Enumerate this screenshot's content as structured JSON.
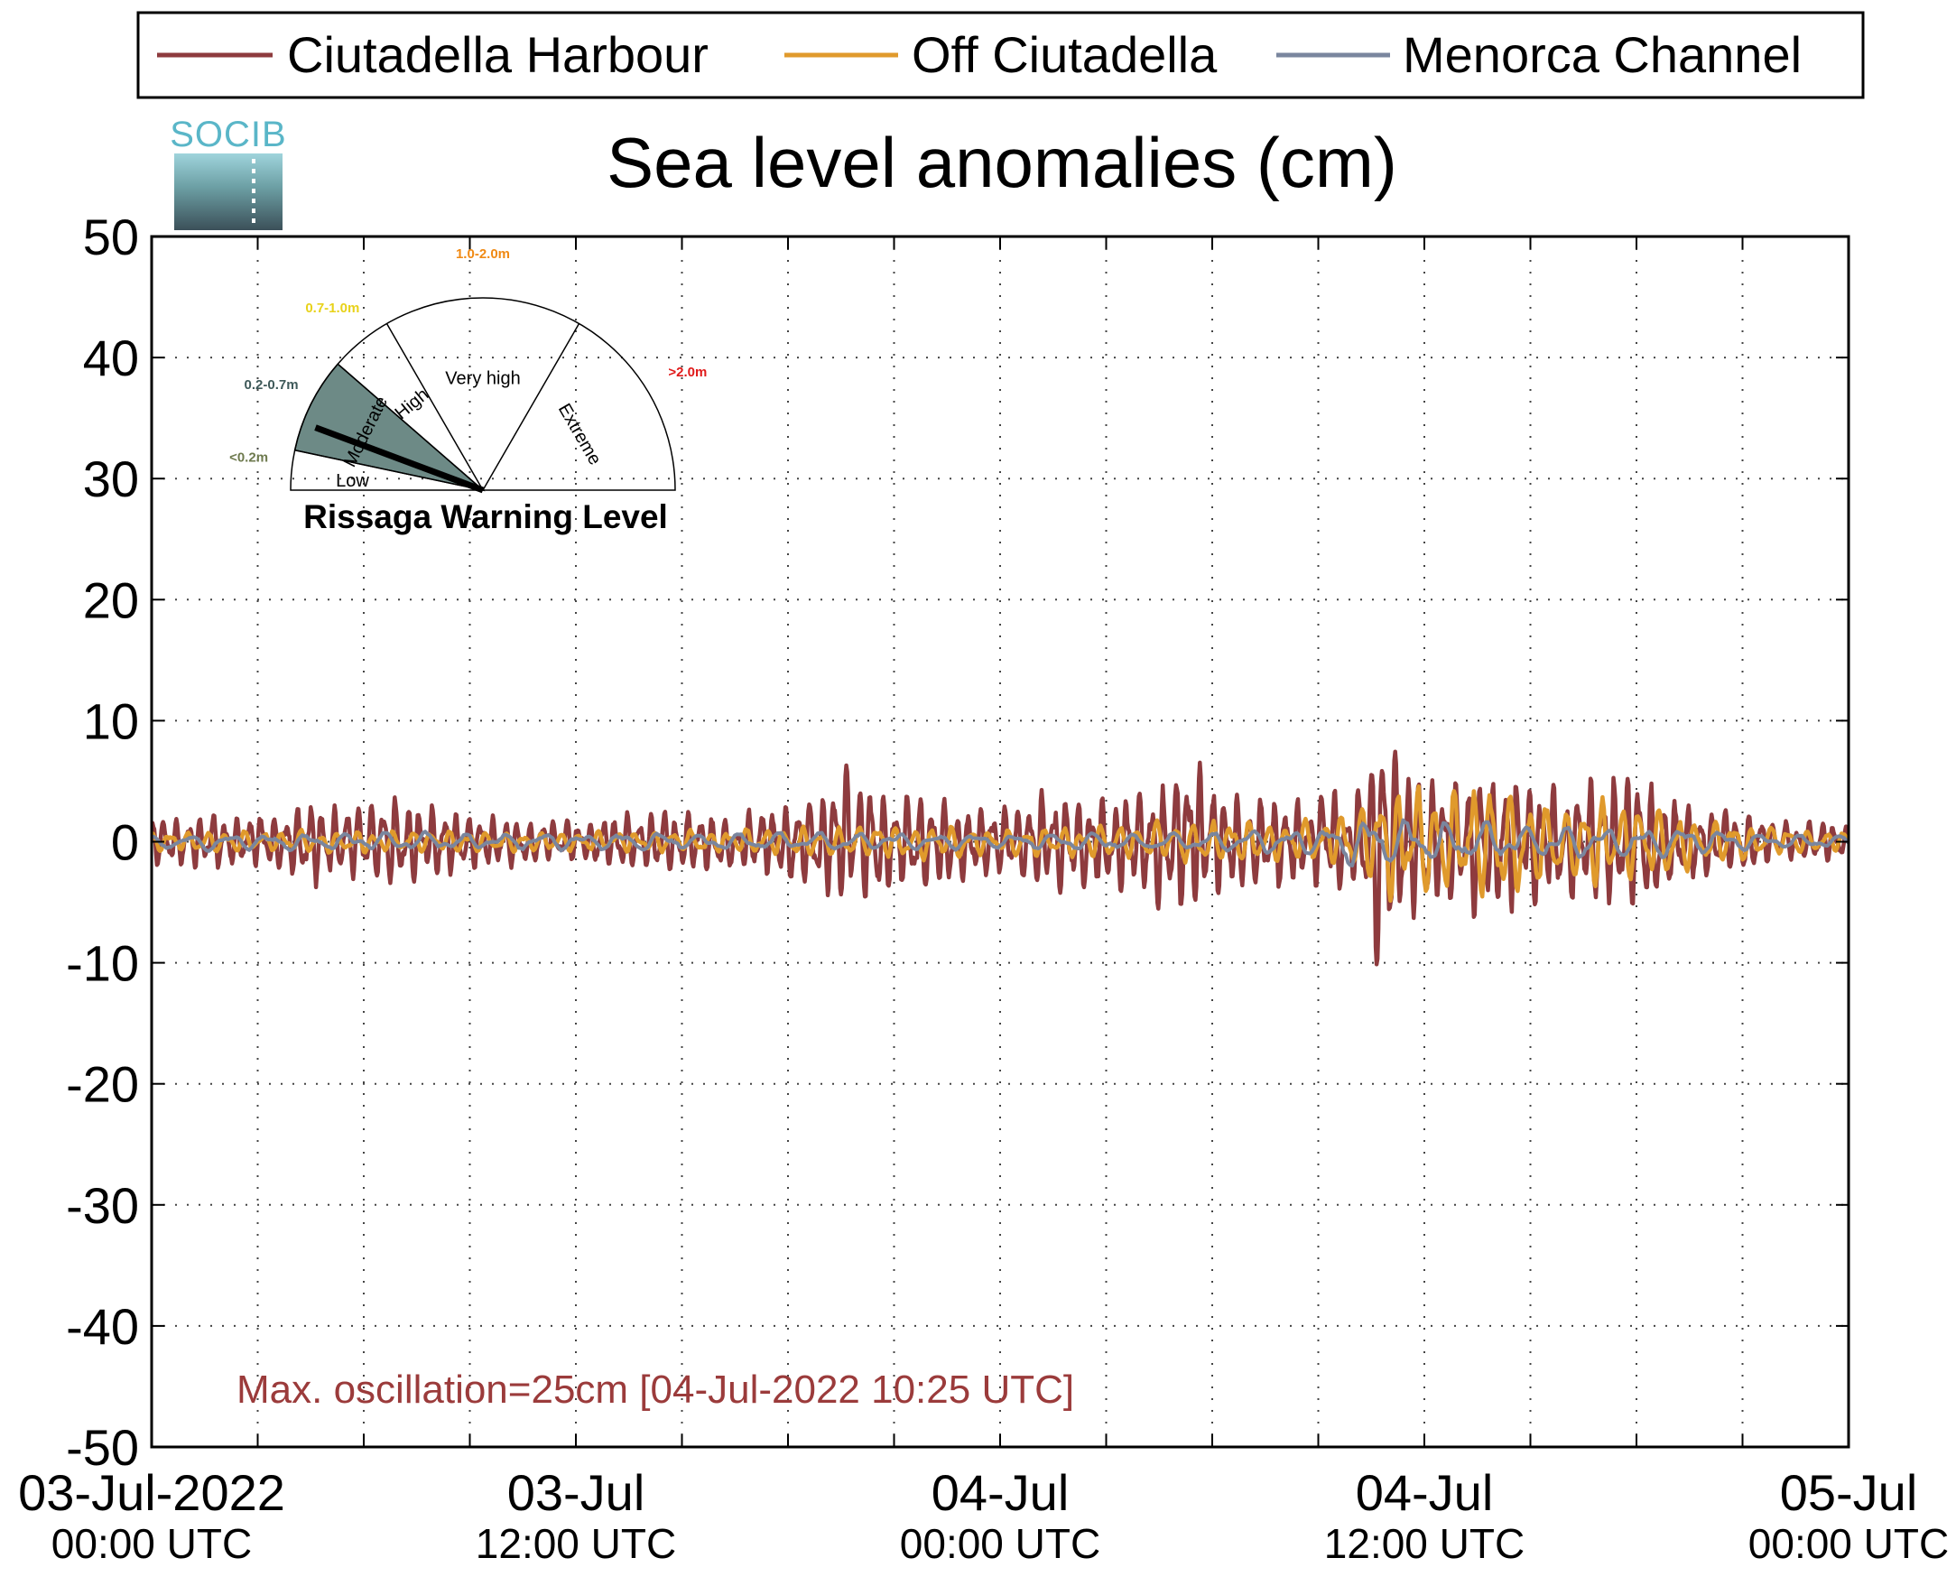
{
  "logo": {
    "text": "SOCIB"
  },
  "chart_data": {
    "type": "line",
    "title": "Sea level anomalies (cm)",
    "xlabel": "",
    "ylabel": "",
    "ylim": [
      -50,
      50
    ],
    "yticks": [
      50,
      40,
      30,
      20,
      10,
      0,
      -10,
      -20,
      -30,
      -40,
      -50
    ],
    "xlim_hours": [
      0,
      48
    ],
    "x_units": "hours since 03-Jul-2022 00:00 UTC (plotted on a date axis)",
    "xtick_labels": [
      {
        "hour": 0,
        "line1": "03-Jul-2022",
        "line2": "00:00 UTC"
      },
      {
        "hour": 12,
        "line1": "03-Jul",
        "line2": "12:00 UTC"
      },
      {
        "hour": 24,
        "line1": "04-Jul",
        "line2": "00:00 UTC"
      },
      {
        "hour": 36,
        "line1": "04-Jul",
        "line2": "12:00 UTC"
      },
      {
        "hour": 48,
        "line1": "05-Jul",
        "line2": "00:00 UTC"
      }
    ],
    "x_grid_hours": [
      3,
      6,
      9,
      12,
      15,
      18,
      21,
      24,
      27,
      30,
      33,
      36,
      39,
      42,
      45
    ],
    "grid": true,
    "legend_position": "top",
    "annotation": {
      "text": "Max. oscillation=25cm [04-Jul-2022 10:25 UTC]",
      "color": "#9b3b3b"
    },
    "series": [
      {
        "name": "Ciutadella Harbour",
        "color": "#8e3b3e",
        "amplitude_envelope_cm": [
          [
            0,
            2.0
          ],
          [
            1.5,
            2.5
          ],
          [
            3,
            2.2
          ],
          [
            4,
            3.0
          ],
          [
            4.4,
            4.5
          ],
          [
            5,
            3.2
          ],
          [
            6,
            3.5
          ],
          [
            7,
            3.8
          ],
          [
            8,
            3.0
          ],
          [
            9,
            2.5
          ],
          [
            10,
            2.2
          ],
          [
            11,
            2.0
          ],
          [
            12,
            1.8
          ],
          [
            13,
            2.3
          ],
          [
            14,
            2.5
          ],
          [
            15,
            2.7
          ],
          [
            16,
            2.5
          ],
          [
            17,
            2.7
          ],
          [
            18,
            3.5
          ],
          [
            19,
            4.5
          ],
          [
            19.5,
            5.8
          ],
          [
            20,
            5.0
          ],
          [
            21,
            4.0
          ],
          [
            22,
            4.2
          ],
          [
            23,
            3.5
          ],
          [
            24,
            3.0
          ],
          [
            25,
            4.0
          ],
          [
            26,
            4.5
          ],
          [
            27,
            4.0
          ],
          [
            28,
            4.5
          ],
          [
            29,
            6.0
          ],
          [
            29.3,
            7.5
          ],
          [
            30,
            5.0
          ],
          [
            31,
            4.0
          ],
          [
            32,
            4.0
          ],
          [
            33,
            4.0
          ],
          [
            34,
            4.2
          ],
          [
            34.5,
            8.0
          ],
          [
            34.8,
            13.0
          ],
          [
            35,
            9.0
          ],
          [
            36,
            6.0
          ],
          [
            37,
            6.0
          ],
          [
            38,
            6.5
          ],
          [
            39,
            6.0
          ],
          [
            40,
            5.0
          ],
          [
            41,
            6.0
          ],
          [
            42,
            6.0
          ],
          [
            43,
            4.0
          ],
          [
            44,
            3.0
          ],
          [
            45,
            2.5
          ],
          [
            46,
            1.8
          ],
          [
            47,
            1.8
          ],
          [
            48,
            1.5
          ]
        ]
      },
      {
        "name": "Off Ciutadella",
        "color": "#e09a2c",
        "amplitude_envelope_cm": [
          [
            0,
            0.8
          ],
          [
            6,
            1.0
          ],
          [
            12,
            0.8
          ],
          [
            18,
            1.2
          ],
          [
            22,
            1.5
          ],
          [
            24,
            1.2
          ],
          [
            28,
            1.5
          ],
          [
            30,
            2.0
          ],
          [
            32,
            1.5
          ],
          [
            34,
            2.5
          ],
          [
            35,
            5.5
          ],
          [
            36,
            4.5
          ],
          [
            37,
            5.0
          ],
          [
            38,
            5.5
          ],
          [
            39,
            4.0
          ],
          [
            40,
            3.0
          ],
          [
            41,
            4.5
          ],
          [
            42,
            3.5
          ],
          [
            44,
            2.0
          ],
          [
            46,
            1.2
          ],
          [
            48,
            0.8
          ]
        ]
      },
      {
        "name": "Menorca Channel",
        "color": "#7a869e",
        "amplitude_envelope_cm": [
          [
            0,
            0.6
          ],
          [
            6,
            0.8
          ],
          [
            12,
            0.8
          ],
          [
            18,
            0.8
          ],
          [
            24,
            0.7
          ],
          [
            30,
            0.9
          ],
          [
            33,
            1.2
          ],
          [
            34.5,
            2.5
          ],
          [
            36,
            1.8
          ],
          [
            38,
            1.8
          ],
          [
            40,
            1.5
          ],
          [
            42,
            1.5
          ],
          [
            45,
            0.8
          ],
          [
            48,
            0.5
          ]
        ]
      }
    ]
  },
  "gauge": {
    "title": "Rissaga Warning Level",
    "active_level": "Moderate",
    "levels": [
      {
        "name": "Low",
        "range": "<0.2m",
        "range_color": "#6e7a4e"
      },
      {
        "name": "Moderate",
        "range": "0.2-0.7m",
        "range_color": "#3f5a5a"
      },
      {
        "name": "High",
        "range": "0.7-1.0m",
        "range_color": "#e8d21a"
      },
      {
        "name": "Very high",
        "range": "1.0-2.0m",
        "range_color": "#f08a14"
      },
      {
        "name": "Extreme",
        "range": ">2.0m",
        "range_color": "#e01a1a"
      }
    ],
    "active_fill": "#6d8a86"
  }
}
